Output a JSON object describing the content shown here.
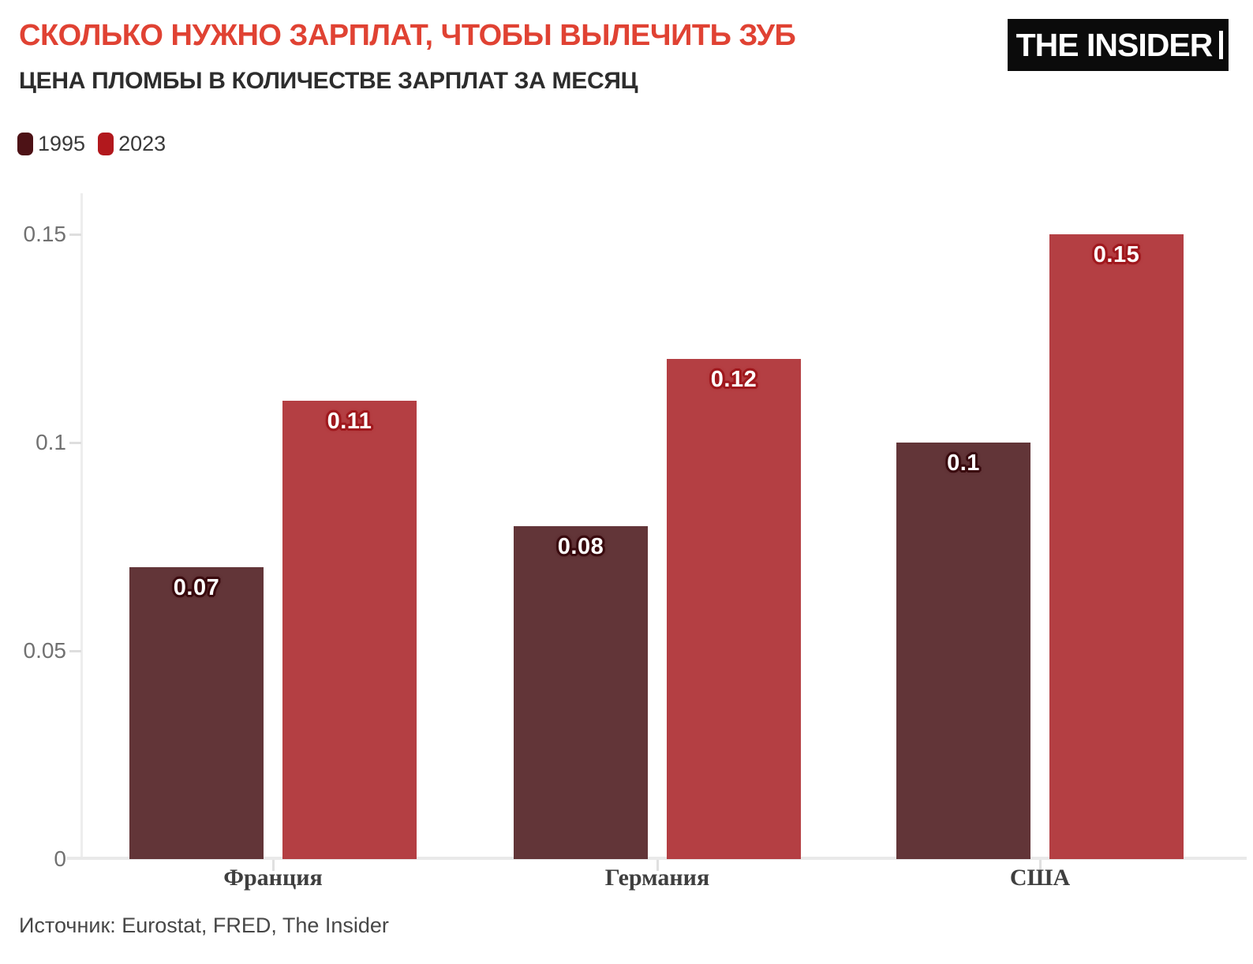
{
  "header": {
    "title": "СКОЛЬКО НУЖНО ЗАРПЛАТ, ЧТОБЫ ВЫЛЕЧИТЬ ЗУБ",
    "title_color": "#e04233",
    "subtitle": "ЦЕНА ПЛОМБЫ В КОЛИЧЕСТВЕ ЗАРПЛАТ ЗА МЕСЯЦ",
    "logo": {
      "text": "THE INSIDER",
      "bg_color": "#0b0b0b",
      "fg_color": "#ffffff"
    }
  },
  "legend": {
    "items": [
      {
        "label": "1995",
        "color": "#4d1216"
      },
      {
        "label": "2023",
        "color": "#b2181d"
      }
    ]
  },
  "chart_data": {
    "type": "bar",
    "title": "СКОЛЬКО НУЖНО ЗАРПЛАТ, ЧТОБЫ ВЫЛЕЧИТЬ ЗУБ",
    "subtitle": "ЦЕНА ПЛОМБЫ В КОЛИЧЕСТВЕ ЗАРПЛАТ ЗА МЕСЯЦ",
    "categories": [
      "Франция",
      "Германия",
      "США"
    ],
    "series": [
      {
        "name": "1995",
        "values": [
          0.07,
          0.08,
          0.1
        ],
        "color": "#623538",
        "label_halo_color": "#3b0c10"
      },
      {
        "name": "2023",
        "values": [
          0.11,
          0.12,
          0.15
        ],
        "color": "#b43f43",
        "label_halo_color": "#a01a1f"
      }
    ],
    "ylim": [
      0,
      0.15
    ],
    "y_ticks": [
      0,
      0.05,
      0.1,
      0.15
    ],
    "xlabel": "",
    "ylabel": "",
    "grid": "off",
    "legend_position": "top-left",
    "value_labels_shown": true
  },
  "footer": {
    "source": "Источник: Eurostat, FRED, The Insider"
  }
}
